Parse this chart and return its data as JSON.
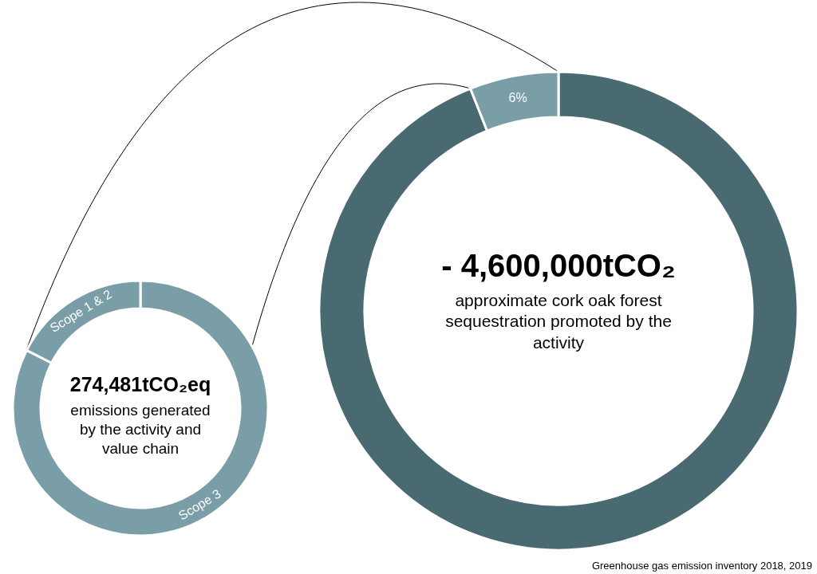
{
  "chart_data": [
    {
      "type": "donut",
      "categories": [
        null,
        null
      ],
      "values": [
        94,
        6
      ],
      "colors": [
        "#4a6a72",
        "#7a9ea7"
      ],
      "value_labels": [
        null,
        "6%"
      ],
      "annotations": [
        "- 4,600,000tCO₂",
        "approximate cork oak forest sequestration promoted by the activity"
      ]
    },
    {
      "type": "donut",
      "categories": [
        "Scope 3",
        "Scope 1 & 2"
      ],
      "values": [
        82.5,
        17.5
      ],
      "colors": [
        "#7a9ea7",
        "#7a9ea7"
      ],
      "annotations": [
        "274,481tCO₂eq",
        "emissions generated by the activity and value chain",
        "Greenhouse gas emission inventory 2018, 2019"
      ]
    }
  ]
}
